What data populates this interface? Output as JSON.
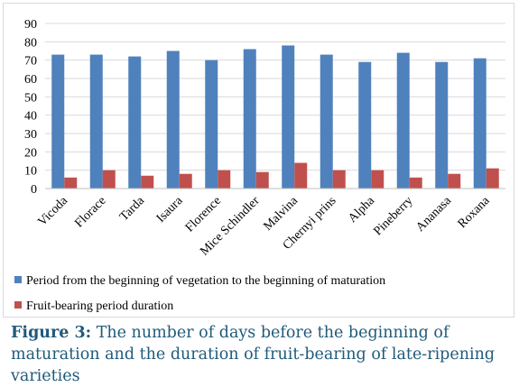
{
  "chart_data": {
    "type": "bar",
    "categories": [
      "Vicoda",
      "Florace",
      "Tarda",
      "Isaura",
      "Florence",
      "Mice Schindler",
      "Malvina",
      "Chernyi prins",
      "Alpha",
      "Pineberry",
      "Ananasa",
      "Roxana"
    ],
    "series": [
      {
        "name": "Period from the beginning of vegetation to the beginning of maturation",
        "color": "#4f81bd",
        "values": [
          73,
          73,
          72,
          75,
          70,
          76,
          78,
          73,
          69,
          74,
          69,
          71
        ]
      },
      {
        "name": "Fruit-bearing period duration",
        "color": "#c0504d",
        "values": [
          6,
          10,
          7,
          8,
          10,
          9,
          14,
          10,
          10,
          6,
          8,
          11
        ]
      }
    ],
    "ylim": [
      0,
      90
    ],
    "yticks": [
      "0",
      "10",
      "20",
      "30",
      "40",
      "50",
      "60",
      "70",
      "80",
      "90"
    ],
    "grid": true,
    "legend_position": "bottom"
  },
  "caption": {
    "label": "Figure 3:",
    "text": " The number of days before the beginning of maturation and the duration of fruit-bearing of late-ripening varieties"
  }
}
